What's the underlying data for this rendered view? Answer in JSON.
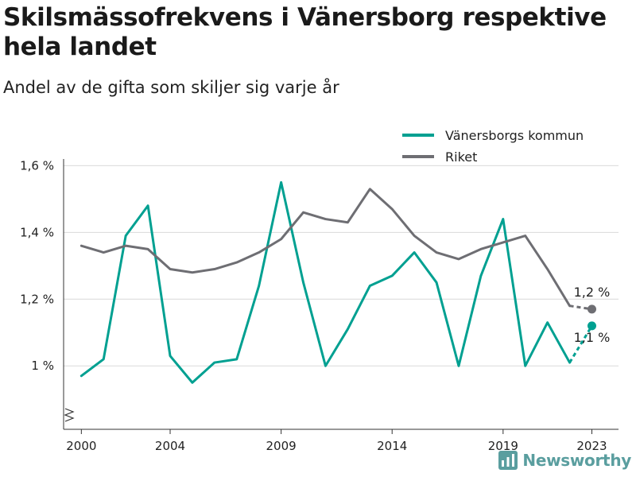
{
  "header": {
    "title": "Skilsmässofrekvens i Vänersborg respektive hela landet",
    "subtitle": "Andel av de gifta som skiljer sig varje år"
  },
  "brand": {
    "logo_text": "Newsworthy",
    "logo_icon": "bar-chart-logo-icon"
  },
  "colors": {
    "vanersborg": "#00a091",
    "riket": "#6e6e73",
    "grid": "#d9d9d9"
  },
  "chart_data": {
    "type": "line",
    "title": "Skilsmässofrekvens i Vänersborg respektive hela landet",
    "subtitle": "Andel av de gifta som skiljer sig varje år",
    "x": [
      2000,
      2001,
      2002,
      2003,
      2004,
      2005,
      2006,
      2007,
      2008,
      2009,
      2010,
      2011,
      2012,
      2013,
      2014,
      2015,
      2016,
      2017,
      2018,
      2019,
      2020,
      2021,
      2022,
      2023
    ],
    "series": [
      {
        "name": "Vänersborgs kommun",
        "values": [
          0.97,
          1.02,
          1.39,
          1.48,
          1.03,
          0.95,
          1.01,
          1.02,
          1.24,
          1.55,
          1.25,
          1.0,
          1.11,
          1.24,
          1.27,
          1.34,
          1.25,
          1.0,
          1.27,
          1.44,
          1.0,
          1.13,
          1.01,
          1.12
        ],
        "end_label": "1,1 %",
        "dashed_last_segment": true
      },
      {
        "name": "Riket",
        "values": [
          1.36,
          1.34,
          1.36,
          1.35,
          1.29,
          1.28,
          1.29,
          1.31,
          1.34,
          1.38,
          1.46,
          1.44,
          1.43,
          1.53,
          1.47,
          1.39,
          1.34,
          1.32,
          1.35,
          1.37,
          1.39,
          1.29,
          1.18,
          1.17
        ],
        "end_label": "1,2 %",
        "dashed_last_segment": true
      }
    ],
    "yticks": [
      1.0,
      1.2,
      1.4,
      1.6
    ],
    "ytick_labels": [
      "1 %",
      "1,2 %",
      "1,4 %",
      "1,6 %"
    ],
    "xticks": [
      2000,
      2004,
      2009,
      2014,
      2019,
      2023
    ],
    "xtick_labels": [
      "2000",
      "2004",
      "2009",
      "2014",
      "2019",
      "2023"
    ],
    "ylim": [
      0.81,
      1.62
    ],
    "xlim": [
      1999.2,
      2024.2
    ],
    "y_axis_break": true,
    "grid": true,
    "legend_position": "top-right"
  }
}
